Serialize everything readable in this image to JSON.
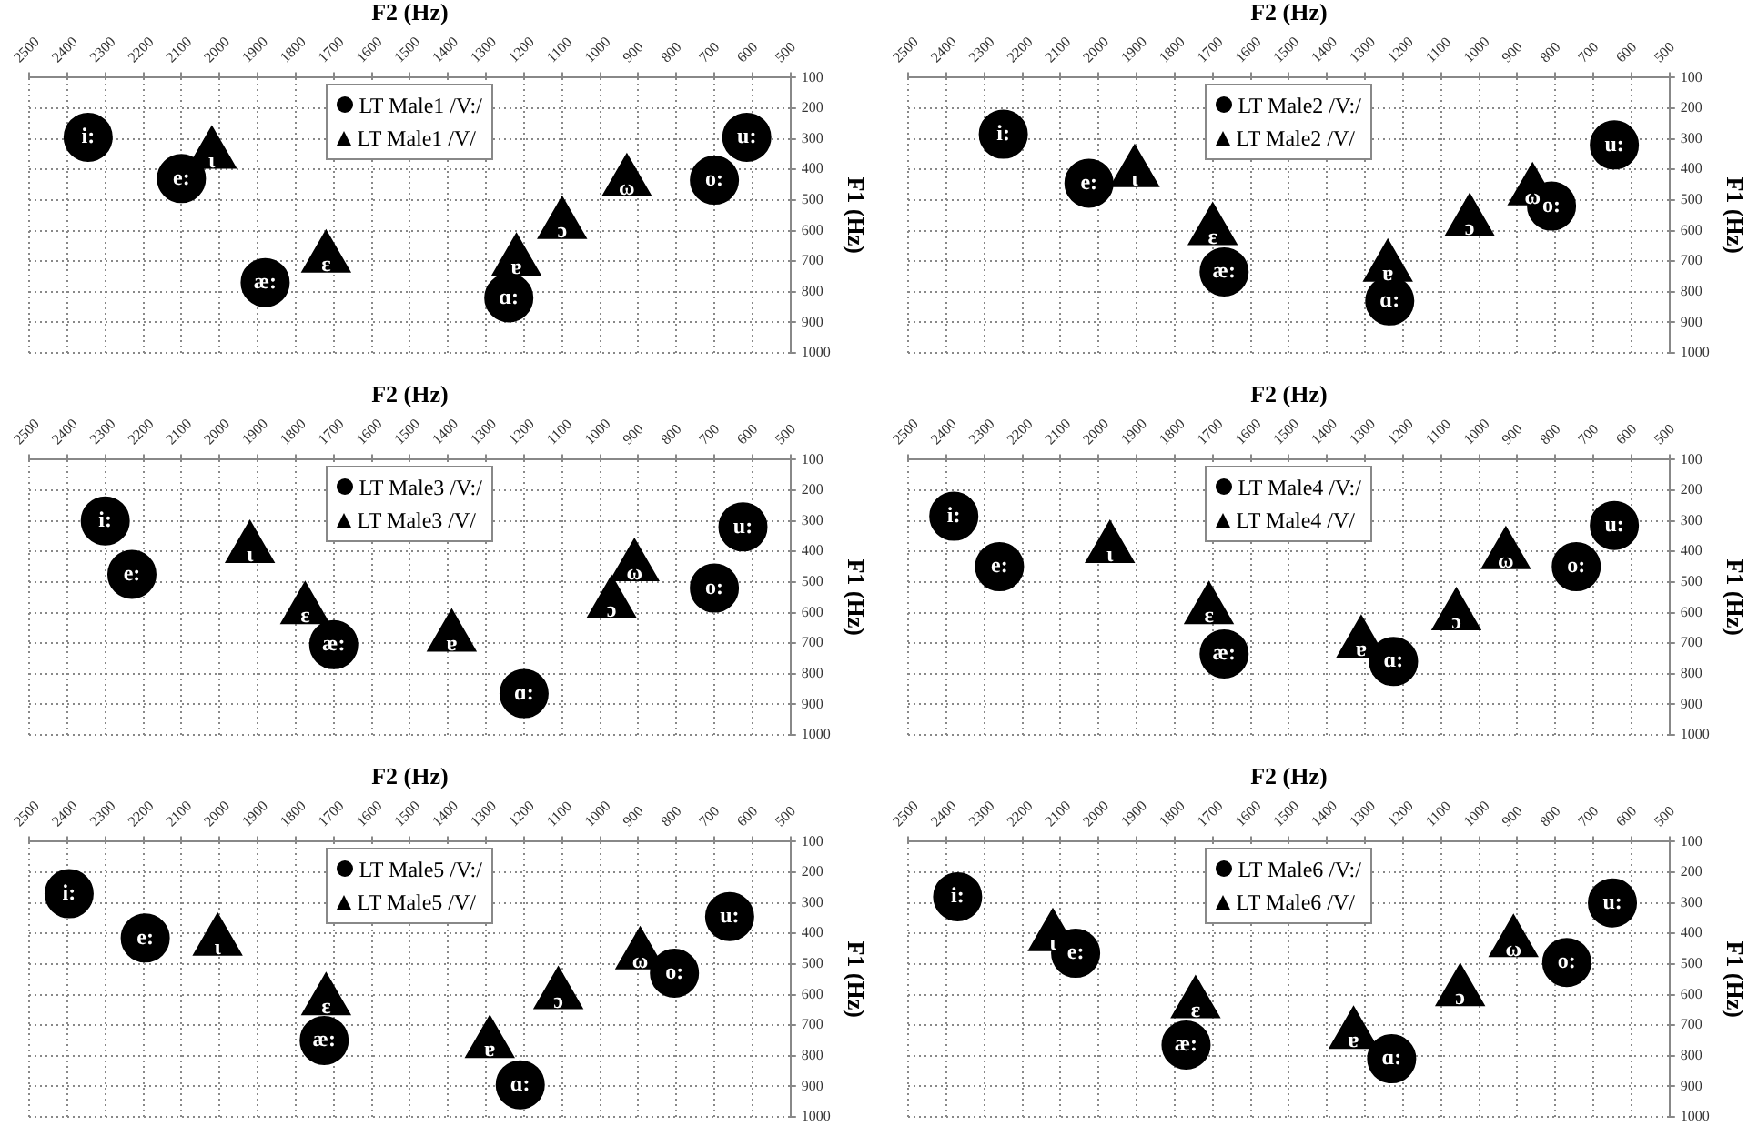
{
  "chart_data": [
    {
      "type": "scatter",
      "xlabel": "F2 (Hz)",
      "ylabel": "F1 (Hz)",
      "xlim": [
        2500,
        500
      ],
      "ylim": [
        1000,
        100
      ],
      "xticks": [
        2500,
        2400,
        2300,
        2200,
        2100,
        2000,
        1900,
        1800,
        1700,
        1600,
        1500,
        1400,
        1300,
        1200,
        1100,
        1000,
        900,
        800,
        700,
        600,
        500
      ],
      "yticks": [
        100,
        200,
        300,
        400,
        500,
        600,
        700,
        800,
        900,
        1000
      ],
      "grid": true,
      "legend": "top",
      "series": [
        {
          "name": "LT Male1 /V:/",
          "color": "#000000",
          "marker": "circle",
          "x": [
            2345,
            2100,
            1880,
            1240,
            700,
            615
          ],
          "values": [
            295,
            430,
            770,
            820,
            435,
            295
          ],
          "value_labels": [
            "i:",
            "e:",
            "æ:",
            "ɑ:",
            "o:",
            "u:"
          ]
        },
        {
          "name": "LT Male1 /V/",
          "color": "#000000",
          "marker": "triangle",
          "x": [
            2020,
            1720,
            1220,
            1100,
            930
          ],
          "values": [
            350,
            690,
            700,
            580,
            440
          ],
          "value_labels": [
            "ι",
            "ɛ",
            "ɐ",
            "ɔ",
            "ω"
          ]
        }
      ]
    },
    {
      "type": "scatter",
      "xlabel": "F2 (Hz)",
      "ylabel": "F1 (Hz)",
      "xlim": [
        2500,
        500
      ],
      "ylim": [
        1000,
        100
      ],
      "xticks": [
        2500,
        2400,
        2300,
        2200,
        2100,
        2000,
        1900,
        1800,
        1700,
        1600,
        1500,
        1400,
        1300,
        1200,
        1100,
        1000,
        900,
        800,
        700,
        600,
        500
      ],
      "yticks": [
        100,
        200,
        300,
        400,
        500,
        600,
        700,
        800,
        900,
        1000
      ],
      "grid": true,
      "legend": "top",
      "series": [
        {
          "name": "LT Male2 /V:/",
          "color": "#000000",
          "marker": "circle",
          "x": [
            2250,
            2025,
            1670,
            1235,
            810,
            645
          ],
          "values": [
            285,
            445,
            735,
            830,
            520,
            320
          ],
          "value_labels": [
            "i:",
            "e:",
            "æ:",
            "ɑ:",
            "o:",
            "u:"
          ]
        },
        {
          "name": "LT Male2 /V/",
          "color": "#000000",
          "marker": "triangle",
          "x": [
            1905,
            1700,
            1240,
            1025,
            860
          ],
          "values": [
            410,
            600,
            720,
            570,
            470
          ],
          "value_labels": [
            "ι",
            "ɛ",
            "ɐ",
            "ɔ",
            "ω"
          ]
        }
      ]
    },
    {
      "type": "scatter",
      "xlabel": "F2 (Hz)",
      "ylabel": "F1 (Hz)",
      "xlim": [
        2500,
        500
      ],
      "ylim": [
        1000,
        100
      ],
      "xticks": [
        2500,
        2400,
        2300,
        2200,
        2100,
        2000,
        1900,
        1800,
        1700,
        1600,
        1500,
        1400,
        1300,
        1200,
        1100,
        1000,
        900,
        800,
        700,
        600,
        500
      ],
      "yticks": [
        100,
        200,
        300,
        400,
        500,
        600,
        700,
        800,
        900,
        1000
      ],
      "grid": true,
      "legend": "top",
      "series": [
        {
          "name": "LT Male3 /V:/",
          "color": "#000000",
          "marker": "circle",
          "x": [
            2300,
            2230,
            1700,
            1200,
            700,
            625
          ],
          "values": [
            300,
            475,
            705,
            865,
            520,
            320
          ],
          "value_labels": [
            "i:",
            "e:",
            "æ:",
            "ɑ:",
            "o:",
            "u:"
          ]
        },
        {
          "name": "LT Male3 /V/",
          "color": "#000000",
          "marker": "triangle",
          "x": [
            1920,
            1775,
            1390,
            970,
            910
          ],
          "values": [
            390,
            590,
            680,
            570,
            450
          ],
          "value_labels": [
            "ι",
            "ɛ",
            "ɐ",
            "ɔ",
            "ω"
          ]
        }
      ]
    },
    {
      "type": "scatter",
      "xlabel": "F2 (Hz)",
      "ylabel": "F1 (Hz)",
      "xlim": [
        2500,
        500
      ],
      "ylim": [
        1000,
        100
      ],
      "xticks": [
        2500,
        2400,
        2300,
        2200,
        2100,
        2000,
        1900,
        1800,
        1700,
        1600,
        1500,
        1400,
        1300,
        1200,
        1100,
        1000,
        900,
        800,
        700,
        600,
        500
      ],
      "yticks": [
        100,
        200,
        300,
        400,
        500,
        600,
        700,
        800,
        900,
        1000
      ],
      "grid": true,
      "legend": "top",
      "series": [
        {
          "name": "LT Male4 /V:/",
          "color": "#000000",
          "marker": "circle",
          "x": [
            2380,
            2260,
            1670,
            1225,
            745,
            645
          ],
          "values": [
            285,
            450,
            735,
            760,
            450,
            315
          ],
          "value_labels": [
            "i:",
            "e:",
            "æ:",
            "ɑ:",
            "o:",
            "u:"
          ]
        },
        {
          "name": "LT Male4 /V/",
          "color": "#000000",
          "marker": "triangle",
          "x": [
            1970,
            1710,
            1310,
            1060,
            930
          ],
          "values": [
            390,
            590,
            700,
            610,
            410
          ],
          "value_labels": [
            "ι",
            "ɛ",
            "ɐ",
            "ɔ",
            "ω"
          ]
        }
      ]
    },
    {
      "type": "scatter",
      "xlabel": "F2 (Hz)",
      "ylabel": "F1 (Hz)",
      "xlim": [
        2500,
        500
      ],
      "ylim": [
        1000,
        100
      ],
      "xticks": [
        2500,
        2400,
        2300,
        2200,
        2100,
        2000,
        1900,
        1800,
        1700,
        1600,
        1500,
        1400,
        1300,
        1200,
        1100,
        1000,
        900,
        800,
        700,
        600,
        500
      ],
      "yticks": [
        100,
        200,
        300,
        400,
        500,
        600,
        700,
        800,
        900,
        1000
      ],
      "grid": true,
      "legend": "top",
      "series": [
        {
          "name": "LT Male5 /V:/",
          "color": "#000000",
          "marker": "circle",
          "x": [
            2395,
            2195,
            1725,
            1210,
            805,
            660
          ],
          "values": [
            270,
            415,
            750,
            895,
            530,
            345
          ],
          "value_labels": [
            "i:",
            "e:",
            "æ:",
            "ɑ:",
            "o:",
            "u:"
          ]
        },
        {
          "name": "LT Male5 /V/",
          "color": "#000000",
          "marker": "triangle",
          "x": [
            2005,
            1720,
            1290,
            1110,
            895
          ],
          "values": [
            425,
            620,
            760,
            600,
            470
          ],
          "value_labels": [
            "ι",
            "ɛ",
            "ɐ",
            "ɔ",
            "ω"
          ]
        }
      ]
    },
    {
      "type": "scatter",
      "xlabel": "F2 (Hz)",
      "ylabel": "F1 (Hz)",
      "xlim": [
        2500,
        500
      ],
      "ylim": [
        1000,
        100
      ],
      "xticks": [
        2500,
        2400,
        2300,
        2200,
        2100,
        2000,
        1900,
        1800,
        1700,
        1600,
        1500,
        1400,
        1300,
        1200,
        1100,
        1000,
        900,
        800,
        700,
        600,
        500
      ],
      "yticks": [
        100,
        200,
        300,
        400,
        500,
        600,
        700,
        800,
        900,
        1000
      ],
      "grid": true,
      "legend": "top",
      "series": [
        {
          "name": "LT Male6 /V:/",
          "color": "#000000",
          "marker": "circle",
          "x": [
            2370,
            2060,
            1770,
            1230,
            770,
            650
          ],
          "values": [
            280,
            465,
            765,
            810,
            495,
            300
          ],
          "value_labels": [
            "i:",
            "e:",
            "æ:",
            "ɑ:",
            "o:",
            "u:"
          ]
        },
        {
          "name": "LT Male6 /V/",
          "color": "#000000",
          "marker": "triangle",
          "x": [
            2120,
            1745,
            1330,
            1050,
            910
          ],
          "values": [
            410,
            630,
            730,
            590,
            430
          ],
          "value_labels": [
            "ι",
            "ɛ",
            "ɐ",
            "ɔ",
            "ω"
          ]
        }
      ]
    }
  ]
}
